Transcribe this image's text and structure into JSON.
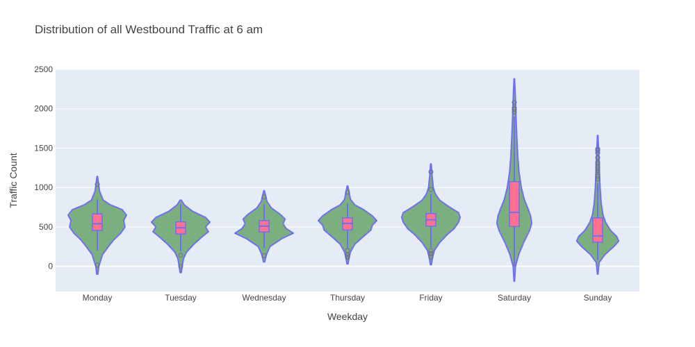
{
  "chart_data": {
    "type": "violin",
    "title": "Distribution of all Westbound Traffic at 6 am",
    "xlabel": "Weekday",
    "ylabel": "Traffic Count",
    "ylim": [
      -320,
      2500
    ],
    "yticks": [
      0,
      500,
      1000,
      1500,
      2000,
      2500
    ],
    "grid": true,
    "colors": {
      "plot_bg": "#e5ecf6",
      "grid": "#ffffff",
      "violin_fill": "#6aa56a",
      "violin_line": "#6f6ff0",
      "box_fill": "#ff7092",
      "outlier": "#6b6b9a"
    },
    "categories": [
      "Monday",
      "Tuesday",
      "Wednesday",
      "Thursday",
      "Friday",
      "Saturday",
      "Sunday"
    ],
    "violins": [
      {
        "category": "Monday",
        "min": -100,
        "max": 1140,
        "density": [
          [
            -100,
            0.02
          ],
          [
            0,
            0.05
          ],
          [
            150,
            0.18
          ],
          [
            250,
            0.38
          ],
          [
            330,
            0.55
          ],
          [
            420,
            0.8
          ],
          [
            500,
            0.95
          ],
          [
            580,
            0.9
          ],
          [
            650,
            1.0
          ],
          [
            720,
            0.85
          ],
          [
            780,
            0.45
          ],
          [
            840,
            0.2
          ],
          [
            950,
            0.08
          ],
          [
            1050,
            0.04
          ],
          [
            1140,
            0.01
          ]
        ],
        "q1": 455,
        "median": 540,
        "q3": 665,
        "whisker_low": 200,
        "whisker_high": 850,
        "outliers": [
          15,
          1040
        ]
      },
      {
        "category": "Tuesday",
        "min": -80,
        "max": 840,
        "density": [
          [
            -80,
            0.02
          ],
          [
            0,
            0.05
          ],
          [
            100,
            0.1
          ],
          [
            180,
            0.2
          ],
          [
            280,
            0.45
          ],
          [
            380,
            0.75
          ],
          [
            440,
            0.95
          ],
          [
            500,
            0.85
          ],
          [
            560,
            1.0
          ],
          [
            620,
            0.85
          ],
          [
            700,
            0.4
          ],
          [
            780,
            0.12
          ],
          [
            840,
            0.02
          ]
        ],
        "q1": 410,
        "median": 490,
        "q3": 565,
        "whisker_low": 190,
        "whisker_high": 790,
        "outliers": [
          0,
          140
        ]
      },
      {
        "category": "Wednesday",
        "min": 55,
        "max": 960,
        "density": [
          [
            55,
            0.02
          ],
          [
            150,
            0.08
          ],
          [
            250,
            0.2
          ],
          [
            350,
            0.6
          ],
          [
            420,
            1.0
          ],
          [
            480,
            0.75
          ],
          [
            540,
            0.65
          ],
          [
            600,
            0.72
          ],
          [
            660,
            0.55
          ],
          [
            740,
            0.25
          ],
          [
            820,
            0.1
          ],
          [
            900,
            0.05
          ],
          [
            960,
            0.01
          ]
        ],
        "q1": 435,
        "median": 510,
        "q3": 580,
        "whisker_low": 230,
        "whisker_high": 790,
        "outliers": [
          135,
          880
        ]
      },
      {
        "category": "Thursday",
        "min": 30,
        "max": 1020,
        "density": [
          [
            30,
            0.02
          ],
          [
            100,
            0.05
          ],
          [
            180,
            0.1
          ],
          [
            280,
            0.25
          ],
          [
            380,
            0.55
          ],
          [
            460,
            0.8
          ],
          [
            520,
            0.85
          ],
          [
            580,
            1.0
          ],
          [
            640,
            0.85
          ],
          [
            720,
            0.55
          ],
          [
            780,
            0.25
          ],
          [
            850,
            0.1
          ],
          [
            950,
            0.05
          ],
          [
            1020,
            0.01
          ]
        ],
        "q1": 460,
        "median": 545,
        "q3": 615,
        "whisker_low": 220,
        "whisker_high": 800,
        "outliers": [
          110,
          125,
          145,
          200,
          940
        ]
      },
      {
        "category": "Friday",
        "min": 20,
        "max": 1300,
        "density": [
          [
            20,
            0.02
          ],
          [
            100,
            0.05
          ],
          [
            200,
            0.12
          ],
          [
            300,
            0.3
          ],
          [
            400,
            0.55
          ],
          [
            480,
            0.8
          ],
          [
            560,
            0.95
          ],
          [
            620,
            1.0
          ],
          [
            680,
            0.95
          ],
          [
            760,
            0.6
          ],
          [
            840,
            0.3
          ],
          [
            920,
            0.15
          ],
          [
            1000,
            0.08
          ],
          [
            1150,
            0.04
          ],
          [
            1300,
            0.01
          ]
        ],
        "q1": 510,
        "median": 590,
        "q3": 670,
        "whisker_low": 240,
        "whisker_high": 920,
        "outliers": [
          110,
          130,
          160,
          200,
          975,
          1200
        ]
      },
      {
        "category": "Saturday",
        "min": -190,
        "max": 2380,
        "density": [
          [
            -190,
            0.01
          ],
          [
            0,
            0.04
          ],
          [
            150,
            0.15
          ],
          [
            300,
            0.32
          ],
          [
            450,
            0.52
          ],
          [
            550,
            0.6
          ],
          [
            650,
            0.55
          ],
          [
            750,
            0.45
          ],
          [
            850,
            0.34
          ],
          [
            1000,
            0.24
          ],
          [
            1200,
            0.16
          ],
          [
            1400,
            0.12
          ],
          [
            1600,
            0.09
          ],
          [
            1800,
            0.07
          ],
          [
            2000,
            0.05
          ],
          [
            2200,
            0.03
          ],
          [
            2380,
            0.01
          ]
        ],
        "q1": 505,
        "median": 685,
        "q3": 1075,
        "whisker_low": 0,
        "whisker_high": 1900,
        "outliers": [
          1960,
          1990,
          2010,
          2080
        ]
      },
      {
        "category": "Sunday",
        "min": -100,
        "max": 1660,
        "density": [
          [
            -100,
            0.01
          ],
          [
            50,
            0.05
          ],
          [
            150,
            0.25
          ],
          [
            250,
            0.55
          ],
          [
            320,
            0.72
          ],
          [
            380,
            0.65
          ],
          [
            450,
            0.45
          ],
          [
            550,
            0.28
          ],
          [
            650,
            0.18
          ],
          [
            800,
            0.12
          ],
          [
            1000,
            0.08
          ],
          [
            1200,
            0.06
          ],
          [
            1400,
            0.04
          ],
          [
            1660,
            0.01
          ]
        ],
        "q1": 305,
        "median": 385,
        "q3": 615,
        "whisker_low": 80,
        "whisker_high": 1050,
        "outliers": [
          1110,
          1140,
          1160,
          1190,
          1220,
          1250,
          1270,
          1300,
          1320,
          1380,
          1440,
          1470,
          1490
        ]
      }
    ]
  }
}
